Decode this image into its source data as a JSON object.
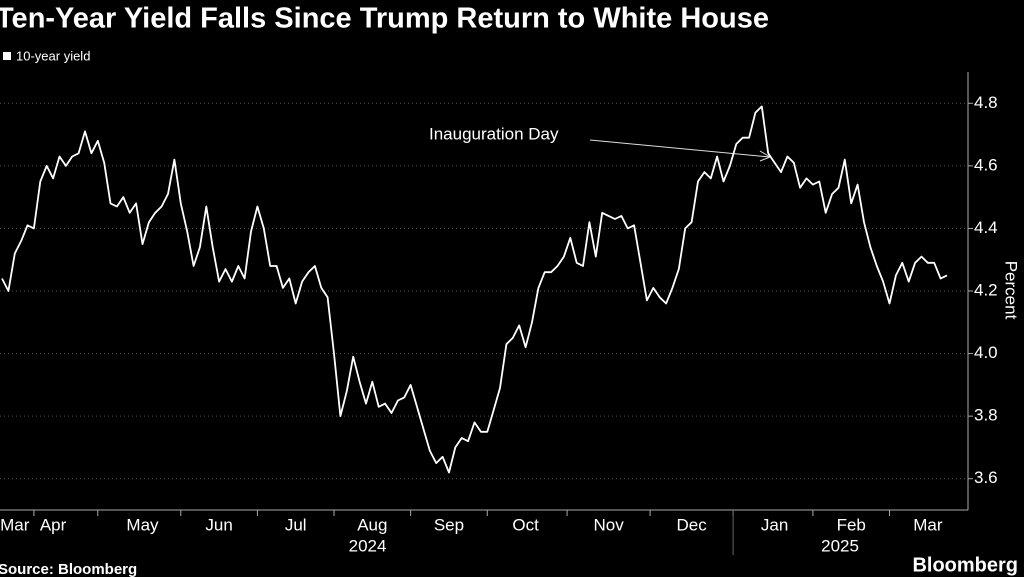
{
  "chart_data": {
    "type": "line",
    "title": "Ten-Year Yield Falls Since Trump Return to White House",
    "y_label": "Percent",
    "annotation": "Inauguration Day",
    "source": "Source: Bloomberg",
    "brand": "Bloomberg",
    "years": [
      "2024",
      "2025"
    ],
    "categories": [
      null,
      null,
      "Mar",
      null,
      null,
      null,
      null,
      null,
      "Apr",
      null,
      null,
      null,
      null,
      null,
      null,
      null,
      null,
      null,
      null,
      null,
      null,
      null,
      "May",
      null,
      null,
      null,
      null,
      null,
      null,
      null,
      null,
      null,
      null,
      null,
      "Jun",
      null,
      null,
      null,
      null,
      null,
      null,
      null,
      null,
      null,
      null,
      null,
      "Jul",
      null,
      null,
      null,
      null,
      null,
      null,
      null,
      null,
      null,
      null,
      null,
      "Aug",
      null,
      null,
      null,
      null,
      null,
      null,
      null,
      null,
      null,
      null,
      null,
      "Sep",
      null,
      null,
      null,
      null,
      null,
      null,
      null,
      null,
      null,
      null,
      null,
      "Oct",
      null,
      null,
      null,
      null,
      null,
      null,
      null,
      null,
      null,
      null,
      null,
      null,
      "Nov",
      null,
      null,
      null,
      null,
      null,
      null,
      null,
      null,
      null,
      null,
      null,
      null,
      "Dec",
      null,
      null,
      null,
      null,
      null,
      null,
      null,
      null,
      null,
      null,
      null,
      null,
      "Jan",
      null,
      null,
      null,
      null,
      null,
      null,
      null,
      null,
      null,
      null,
      null,
      "Feb",
      null,
      null,
      null,
      null,
      null,
      null,
      null,
      null,
      null,
      null,
      null,
      "Mar",
      null,
      null,
      null
    ],
    "series": [
      {
        "name": "10-year yield",
        "color": "#ffffff",
        "values": [
          4.24,
          4.2,
          4.32,
          4.36,
          4.41,
          4.4,
          4.55,
          4.6,
          4.56,
          4.63,
          4.6,
          4.63,
          4.64,
          4.71,
          4.64,
          4.68,
          4.61,
          4.48,
          4.47,
          4.5,
          4.45,
          4.48,
          4.35,
          4.42,
          4.45,
          4.47,
          4.51,
          4.62,
          4.48,
          4.39,
          4.28,
          4.34,
          4.47,
          4.34,
          4.23,
          4.27,
          4.23,
          4.28,
          4.24,
          4.39,
          4.47,
          4.4,
          4.28,
          4.28,
          4.21,
          4.24,
          4.16,
          4.23,
          4.26,
          4.28,
          4.21,
          4.18,
          4.0,
          3.8,
          3.88,
          3.99,
          3.91,
          3.84,
          3.91,
          3.83,
          3.84,
          3.81,
          3.85,
          3.86,
          3.9,
          3.83,
          3.76,
          3.69,
          3.65,
          3.67,
          3.62,
          3.7,
          3.73,
          3.72,
          3.78,
          3.75,
          3.75,
          3.82,
          3.89,
          4.03,
          4.05,
          4.09,
          4.02,
          4.1,
          4.21,
          4.26,
          4.26,
          4.28,
          4.31,
          4.37,
          4.29,
          4.28,
          4.42,
          4.31,
          4.45,
          4.44,
          4.43,
          4.44,
          4.4,
          4.41,
          4.29,
          4.17,
          4.21,
          4.18,
          4.16,
          4.21,
          4.27,
          4.4,
          4.42,
          4.55,
          4.58,
          4.56,
          4.63,
          4.55,
          4.6,
          4.67,
          4.69,
          4.69,
          4.77,
          4.79,
          4.64,
          4.61,
          4.58,
          4.63,
          4.61,
          4.53,
          4.56,
          4.54,
          4.55,
          4.45,
          4.51,
          4.53,
          4.62,
          4.48,
          4.54,
          4.42,
          4.34,
          4.28,
          4.23,
          4.16,
          4.25,
          4.29,
          4.23,
          4.29,
          4.31,
          4.29,
          4.29,
          4.24,
          4.25
        ]
      }
    ],
    "ylim": [
      3.5,
      4.9
    ],
    "yticks": [
      3.6,
      3.8,
      {
        "value": 4,
        "label": "4.0"
      },
      4.2,
      4.4,
      4.6,
      4.8
    ],
    "grid": true
  }
}
